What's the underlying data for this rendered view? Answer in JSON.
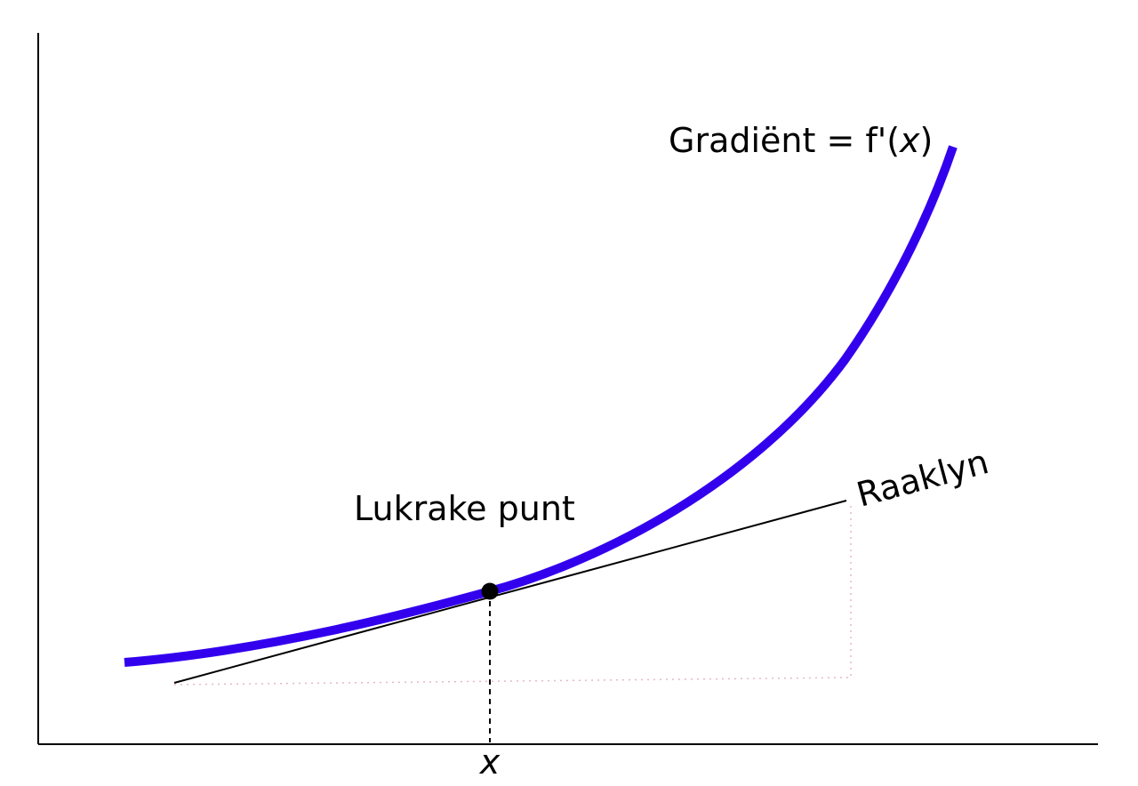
{
  "labels": {
    "gradient": {
      "text": "Gradiënt = f'(",
      "variable": "x",
      "close": ")"
    },
    "point": "Lukrake punt",
    "tangent": "Raaklyn",
    "x_axis": "x"
  }
}
